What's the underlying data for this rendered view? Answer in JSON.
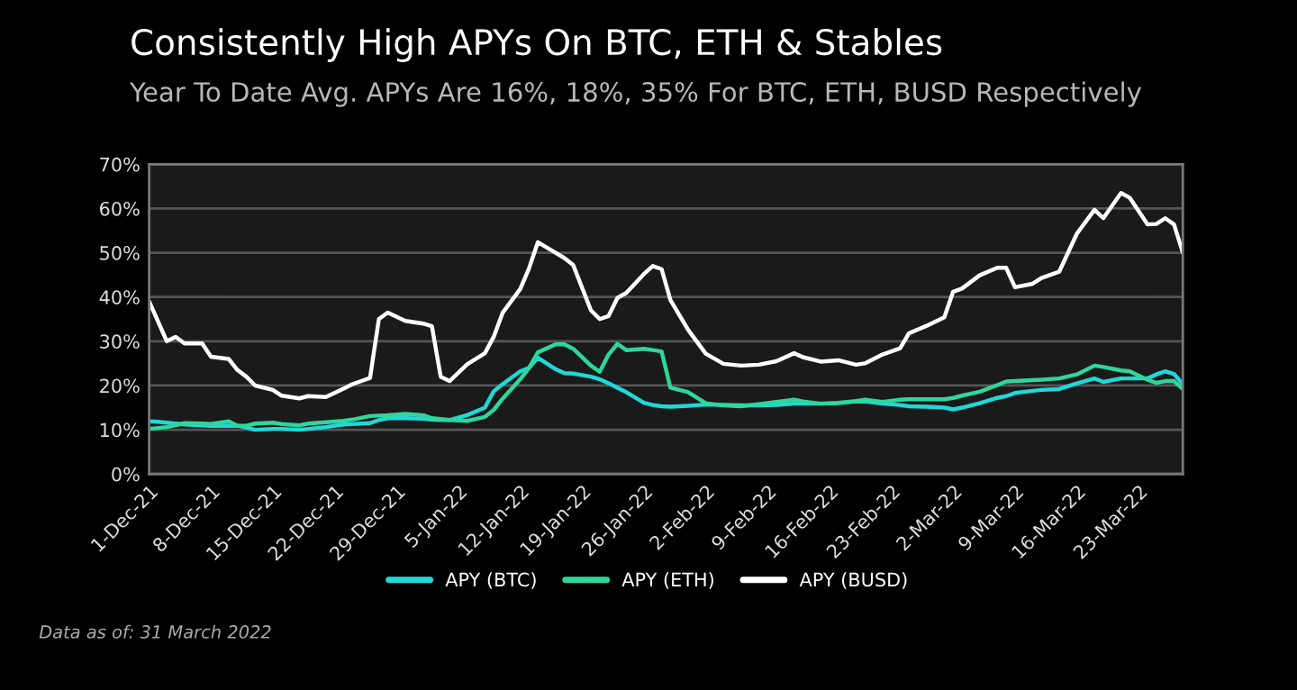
{
  "chart_data": {
    "type": "line",
    "title": "Consistently High APYs On BTC, ETH & Stables",
    "subtitle": "Year To Date Avg. APYs Are 16%, 18%, 35% For BTC, ETH, BUSD Respectively",
    "annotations": [
      "Data as of: 31 March 2022"
    ],
    "x": [
      "2021-12-01",
      "2021-12-02",
      "2021-12-03",
      "2021-12-04",
      "2021-12-05",
      "2021-12-07",
      "2021-12-08",
      "2021-12-10",
      "2021-12-11",
      "2021-12-12",
      "2021-12-13",
      "2021-12-15",
      "2021-12-16",
      "2021-12-18",
      "2021-12-19",
      "2021-12-21",
      "2021-12-23",
      "2021-12-24",
      "2021-12-26",
      "2021-12-27",
      "2021-12-28",
      "2021-12-30",
      "2022-01-01",
      "2022-01-02",
      "2022-01-03",
      "2022-01-04",
      "2022-01-06",
      "2022-01-08",
      "2022-01-09",
      "2022-01-10",
      "2022-01-12",
      "2022-01-13",
      "2022-01-14",
      "2022-01-16",
      "2022-01-17",
      "2022-01-18",
      "2022-01-20",
      "2022-01-21",
      "2022-01-22",
      "2022-01-23",
      "2022-01-24",
      "2022-01-26",
      "2022-01-27",
      "2022-01-28",
      "2022-01-29",
      "2022-01-31",
      "2022-02-02",
      "2022-02-04",
      "2022-02-06",
      "2022-02-08",
      "2022-02-10",
      "2022-02-12",
      "2022-02-13",
      "2022-02-15",
      "2022-02-17",
      "2022-02-19",
      "2022-02-20",
      "2022-02-22",
      "2022-02-24",
      "2022-02-25",
      "2022-02-27",
      "2022-03-01",
      "2022-03-02",
      "2022-03-03",
      "2022-03-05",
      "2022-03-07",
      "2022-03-08",
      "2022-03-09",
      "2022-03-11",
      "2022-03-12",
      "2022-03-14",
      "2022-03-16",
      "2022-03-18",
      "2022-03-19",
      "2022-03-21",
      "2022-03-22",
      "2022-03-24",
      "2022-03-25",
      "2022-03-26",
      "2022-03-27",
      "2022-03-28"
    ],
    "series": [
      {
        "name": "APY (BTC)",
        "color": "#1fd8d8",
        "values": [
          11.9,
          11.8,
          11.6,
          11.4,
          11.2,
          11,
          10.9,
          10.9,
          10.9,
          10.5,
          10,
          10.2,
          10.2,
          10,
          10.2,
          10.6,
          11.2,
          11.3,
          11.5,
          12.2,
          12.6,
          12.6,
          12.5,
          12.3,
          12.2,
          12.2,
          13.3,
          15,
          18.7,
          20.3,
          23.2,
          24,
          26.3,
          23.7,
          22.8,
          22.7,
          22,
          21.4,
          20.5,
          19.5,
          18.5,
          16.1,
          15.6,
          15.3,
          15.2,
          15.4,
          15.7,
          15.6,
          15.5,
          15.5,
          15.6,
          15.9,
          15.9,
          15.9,
          16,
          16.4,
          16.4,
          15.9,
          15.6,
          15.3,
          15.2,
          15,
          14.6,
          15,
          16,
          17.2,
          17.6,
          18.3,
          18.8,
          19,
          19.2,
          20.5,
          21.6,
          20.8,
          21.6,
          21.6,
          21.6,
          22.5,
          23.2,
          22.6,
          20.3
        ]
      },
      {
        "name": "APY (ETH)",
        "color": "#2fd69b",
        "values": [
          10.2,
          10.4,
          10.6,
          11,
          11.5,
          11.4,
          11.3,
          11.9,
          10.9,
          10.9,
          11.4,
          11.6,
          11.3,
          11,
          11.4,
          11.7,
          12,
          12.3,
          13.1,
          13.2,
          13.3,
          13.6,
          13.3,
          12.6,
          12.4,
          12.2,
          12,
          12.9,
          14.5,
          17,
          21.4,
          24,
          27.5,
          29.3,
          29.3,
          28.3,
          24.5,
          23.1,
          27,
          29.4,
          28,
          28.3,
          28,
          27.7,
          19.5,
          18.5,
          16,
          15.5,
          15.3,
          15.8,
          16.3,
          16.8,
          16.4,
          15.9,
          16.1,
          16.5,
          16.8,
          16.3,
          16.8,
          16.9,
          16.9,
          16.9,
          17.2,
          17.7,
          18.6,
          20.1,
          20.9,
          21,
          21.2,
          21.3,
          21.6,
          22.5,
          24.5,
          24.2,
          23.4,
          23.2,
          21.3,
          20.6,
          21,
          21,
          19.2
        ]
      },
      {
        "name": "APY (BUSD)",
        "color": "#ffffff",
        "values": [
          39,
          34.5,
          30,
          31,
          29.5,
          29.5,
          26.5,
          26,
          23.5,
          22,
          20,
          19,
          17.7,
          17.1,
          17.6,
          17.4,
          19.3,
          20.3,
          21.7,
          35,
          36.5,
          34.6,
          34,
          33.4,
          22,
          21,
          24.8,
          27.3,
          31,
          36.4,
          41.8,
          46.5,
          52.4,
          50,
          48.8,
          47.2,
          37,
          35,
          35.7,
          39.8,
          40.9,
          45.2,
          47,
          46.3,
          39.3,
          32.6,
          27.2,
          24.9,
          24.5,
          24.7,
          25.5,
          27.3,
          26.4,
          25.4,
          25.7,
          24.7,
          25,
          27,
          28.4,
          31.8,
          33.5,
          35.4,
          41.2,
          41.9,
          44.9,
          46.6,
          46.6,
          42.2,
          43,
          44.3,
          45.7,
          54.3,
          59.7,
          57.8,
          63.5,
          62.4,
          56.4,
          56.5,
          57.8,
          56.4,
          50
        ]
      }
    ],
    "xlim": [
      "2021-12-01",
      "2022-03-28"
    ],
    "xticks": [
      {
        "value": "2021-12-01",
        "label": "1-Dec-21"
      },
      {
        "value": "2021-12-08",
        "label": "8-Dec-21"
      },
      {
        "value": "2021-12-15",
        "label": "15-Dec-21"
      },
      {
        "value": "2021-12-22",
        "label": "22-Dec-21"
      },
      {
        "value": "2021-12-29",
        "label": "29-Dec-21"
      },
      {
        "value": "2022-01-05",
        "label": "5-Jan-22"
      },
      {
        "value": "2022-01-12",
        "label": "12-Jan-22"
      },
      {
        "value": "2022-01-19",
        "label": "19-Jan-22"
      },
      {
        "value": "2022-01-26",
        "label": "26-Jan-22"
      },
      {
        "value": "2022-02-02",
        "label": "2-Feb-22"
      },
      {
        "value": "2022-02-09",
        "label": "9-Feb-22"
      },
      {
        "value": "2022-02-16",
        "label": "16-Feb-22"
      },
      {
        "value": "2022-02-23",
        "label": "23-Feb-22"
      },
      {
        "value": "2022-03-02",
        "label": "2-Mar-22"
      },
      {
        "value": "2022-03-09",
        "label": "9-Mar-22"
      },
      {
        "value": "2022-03-16",
        "label": "16-Mar-22"
      },
      {
        "value": "2022-03-23",
        "label": "23-Mar-22"
      }
    ],
    "ylim": [
      0,
      70
    ],
    "yticks": [
      {
        "value": 0,
        "label": "0%"
      },
      {
        "value": 10,
        "label": "10%"
      },
      {
        "value": 20,
        "label": "20%"
      },
      {
        "value": 30,
        "label": "30%"
      },
      {
        "value": 40,
        "label": "40%"
      },
      {
        "value": 50,
        "label": "50%"
      },
      {
        "value": 60,
        "label": "60%"
      },
      {
        "value": 70,
        "label": "70%"
      }
    ],
    "grid": "y",
    "legend": "bottom",
    "marker": "none",
    "line_style": "solid"
  }
}
